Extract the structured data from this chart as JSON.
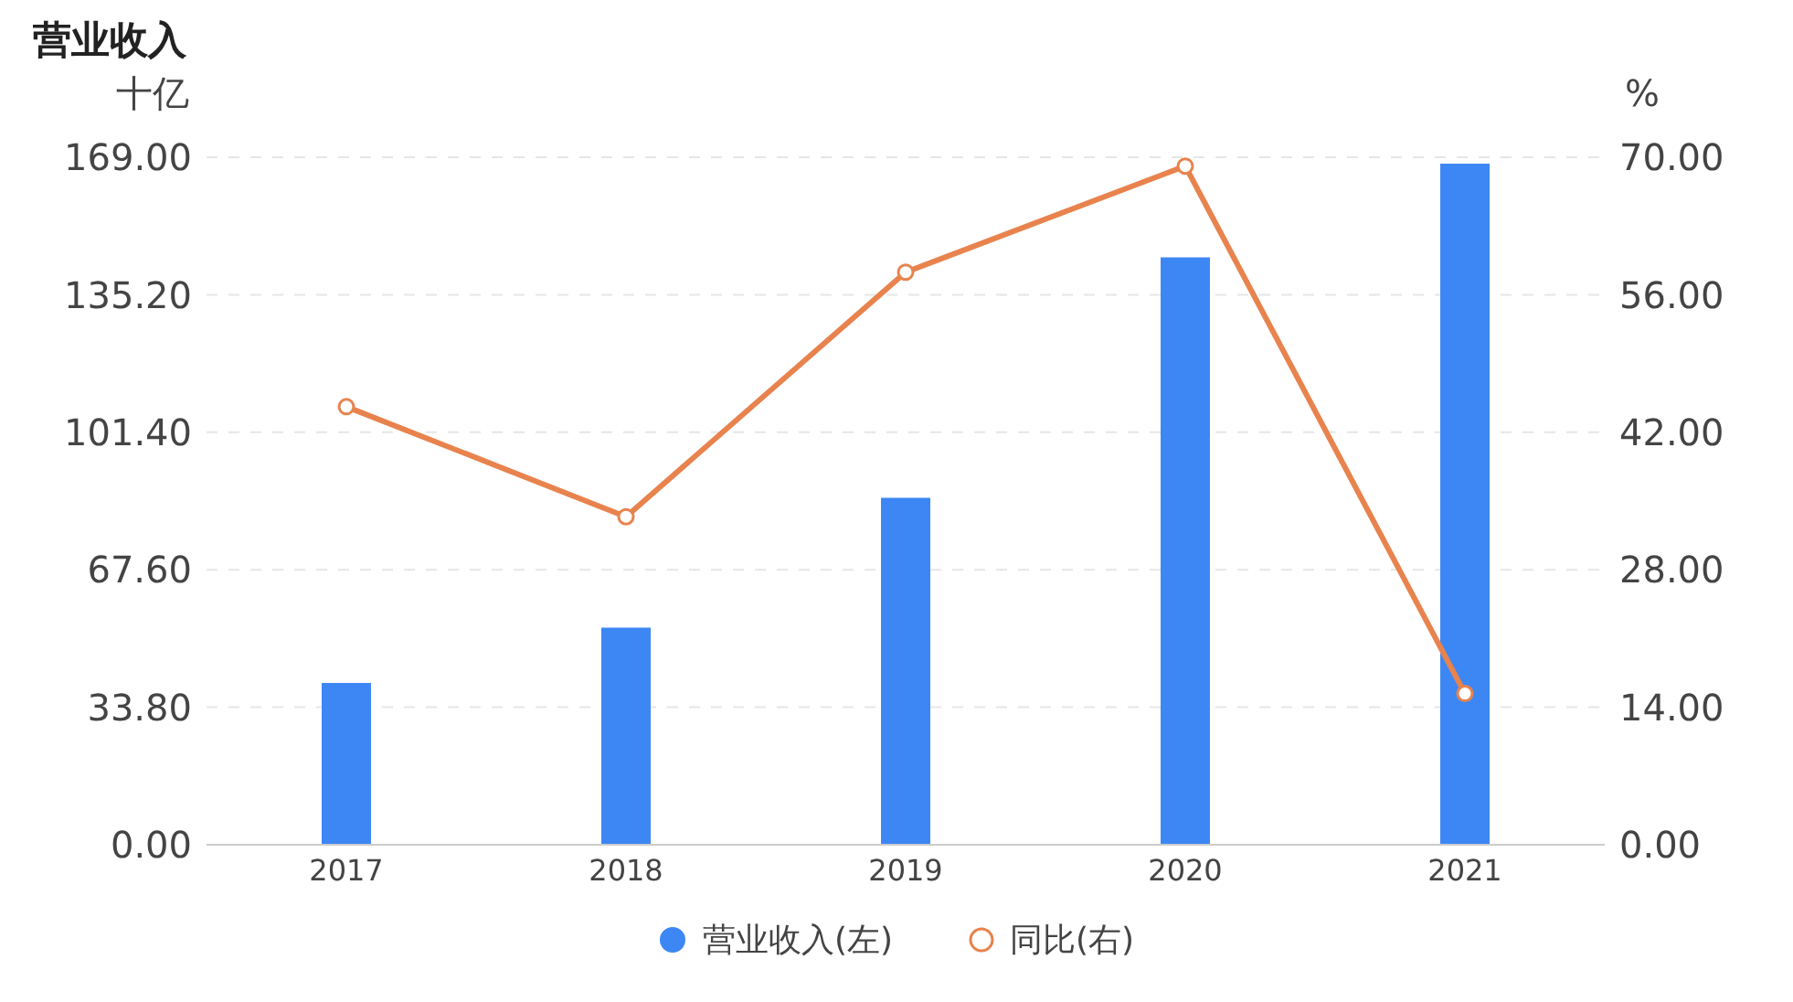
{
  "chart_data": {
    "type": "bar",
    "title": "营业收入",
    "ylabel": "十亿",
    "y2label": "%",
    "categories": [
      "2017",
      "2018",
      "2019",
      "2020",
      "2021"
    ],
    "series": [
      {
        "name": "营业收入(左)",
        "color": "#3d87f5",
        "values": [
          39.8,
          53.4,
          85.3,
          144.4,
          167.4
        ]
      },
      {
        "name": "同比(右)",
        "type": "line",
        "axis": "y2",
        "color": "#e8834e",
        "marker": "circle",
        "values": [
          44.6,
          33.4,
          58.3,
          69.1,
          15.4
        ]
      }
    ],
    "ylim": [
      0,
      169
    ],
    "yticks": [
      {
        "value": 0,
        "label": "0.00"
      },
      {
        "value": 33.8,
        "label": "33.80"
      },
      {
        "value": 67.6,
        "label": "67.60"
      },
      {
        "value": 101.4,
        "label": "101.40"
      },
      {
        "value": 135.2,
        "label": "135.20"
      },
      {
        "value": 169,
        "label": "169.00"
      }
    ],
    "y2lim": [
      0,
      70
    ],
    "y2ticks": [
      {
        "value": 0,
        "label": "0.00"
      },
      {
        "value": 14,
        "label": "14.00"
      },
      {
        "value": 28,
        "label": "28.00"
      },
      {
        "value": 42,
        "label": "42.00"
      },
      {
        "value": 56,
        "label": "56.00"
      },
      {
        "value": 70,
        "label": "70.00"
      }
    ],
    "grid": "y",
    "legend": "bottom"
  }
}
